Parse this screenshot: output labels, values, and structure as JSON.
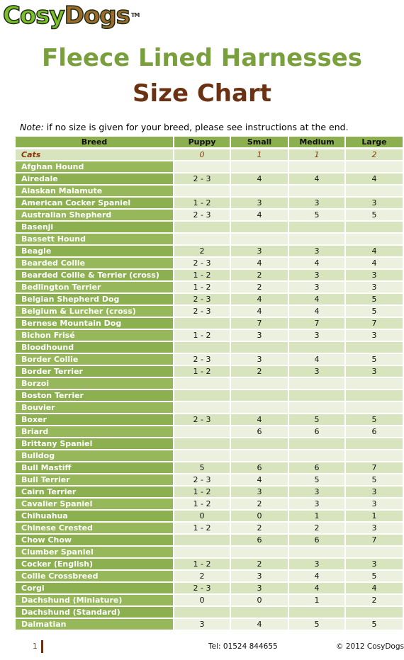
{
  "logo": {
    "text1": "Cosy",
    "text2": "Dogs",
    "tm": "TM"
  },
  "header": {
    "title": "Fleece Lined Harnesses",
    "subtitle": "Size Chart"
  },
  "note": {
    "label": "Note:",
    "text": " if no size is given for your breed, please see instructions at the end."
  },
  "table": {
    "columns": [
      "Breed",
      "Puppy",
      "Small",
      "Medium",
      "Large"
    ],
    "rows": [
      [
        "Cats",
        "0",
        "1",
        "1",
        "2"
      ],
      [
        "Afghan Hound",
        null,
        null,
        null,
        null
      ],
      [
        "Airedale",
        "2 - 3",
        "4",
        "4",
        "4"
      ],
      [
        "Alaskan Malamute",
        null,
        null,
        null,
        null
      ],
      [
        "American Cocker Spaniel",
        "1 - 2",
        "3",
        "3",
        "3"
      ],
      [
        "Australian Shepherd",
        "2 - 3",
        "4",
        "5",
        "5"
      ],
      [
        "Basenji",
        null,
        null,
        null,
        null
      ],
      [
        "Bassett Hound",
        null,
        null,
        null,
        null
      ],
      [
        "Beagle",
        "2",
        "3",
        "3",
        "4"
      ],
      [
        "Bearded Collie",
        "2 - 3",
        "4",
        "4",
        "4"
      ],
      [
        "Bearded Collie & Terrier (cross)",
        "1 - 2",
        "2",
        "3",
        "3"
      ],
      [
        "Bedlington Terrier",
        "1 - 2",
        "2",
        "3",
        "3"
      ],
      [
        "Belgian Shepherd Dog",
        "2 - 3",
        "4",
        "4",
        "5"
      ],
      [
        "Belgium & Lurcher (cross)",
        "2 - 3",
        "4",
        "4",
        "5"
      ],
      [
        "Bernese Mountain Dog",
        null,
        "7",
        "7",
        "7"
      ],
      [
        "Bichon Frisé",
        "1 - 2",
        "3",
        "3",
        "3"
      ],
      [
        "Bloodhound",
        null,
        null,
        null,
        null
      ],
      [
        "Border Collie",
        "2 - 3",
        "3",
        "4",
        "5"
      ],
      [
        "Border Terrier",
        "1 - 2",
        "2",
        "3",
        "3"
      ],
      [
        "Borzoi",
        null,
        null,
        null,
        null
      ],
      [
        "Boston Terrier",
        null,
        null,
        null,
        null
      ],
      [
        "Bouvier",
        null,
        null,
        null,
        null
      ],
      [
        "Boxer",
        "2 - 3",
        "4",
        "5",
        "5"
      ],
      [
        "Briard",
        null,
        "6",
        "6",
        "6"
      ],
      [
        "Brittany Spaniel",
        null,
        null,
        null,
        null
      ],
      [
        "Bulldog",
        null,
        null,
        null,
        null
      ],
      [
        "Bull Mastiff",
        "5",
        "6",
        "6",
        "7"
      ],
      [
        "Bull Terrier",
        "2 - 3",
        "4",
        "5",
        "5"
      ],
      [
        "Cairn Terrier",
        "1 - 2",
        "3",
        "3",
        "3"
      ],
      [
        "Cavalier Spaniel",
        "1 - 2",
        "2",
        "3",
        "3"
      ],
      [
        "Chihuahua",
        "0",
        "0",
        "1",
        "1"
      ],
      [
        "Chinese Crested",
        "1 - 2",
        "2",
        "2",
        "3"
      ],
      [
        "Chow Chow",
        null,
        "6",
        "6",
        "7"
      ],
      [
        "Clumber Spaniel",
        null,
        null,
        null,
        null
      ],
      [
        "Cocker (English)",
        "1 - 2",
        "2",
        "3",
        "3"
      ],
      [
        "Collie Crossbreed",
        "2",
        "3",
        "4",
        "5"
      ],
      [
        "Corgi",
        "2 - 3",
        "3",
        "4",
        "4"
      ],
      [
        "Dachshund (Miniature)",
        "0",
        "0",
        "1",
        "2"
      ],
      [
        "Dachshund (Standard)",
        null,
        null,
        null,
        null
      ],
      [
        "Dalmatian",
        "3",
        "4",
        "5",
        "5"
      ]
    ]
  },
  "footer": {
    "page": "1",
    "phone": "Tel: 01524 844655",
    "copyright": "© 2012 CosyDogs"
  }
}
